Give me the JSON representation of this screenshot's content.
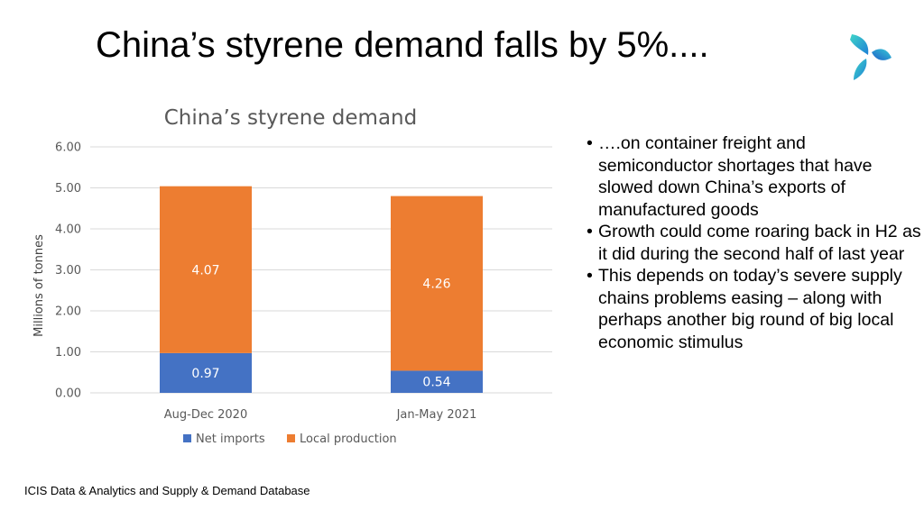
{
  "slide": {
    "title": "China’s styrene demand falls by 5%....",
    "source": "ICIS Data & Analytics and Supply & Demand Database",
    "bullets": [
      "….on container freight and semiconductor shortages that have slowed down China’s exports of manufactured goods",
      "Growth could come roaring back in H2 as it did during the second half of last year",
      "This depends on today’s severe supply chains problems easing – along with perhaps another big round of big local economic stimulus"
    ],
    "bullet_glyph": "•",
    "logo_icon": "triskelion-logo-icon"
  },
  "chart_data": {
    "type": "bar",
    "stacked": true,
    "title": "China’s styrene demand",
    "xlabel": "",
    "ylabel": "Millions of tonnes",
    "categories": [
      "Aug-Dec 2020",
      "Jan-May 2021"
    ],
    "series": [
      {
        "name": "Net imports",
        "values": [
          0.97,
          0.54
        ],
        "labels": [
          "0.97",
          "0.54"
        ],
        "color": "#4472C4"
      },
      {
        "name": "Local production",
        "values": [
          4.07,
          4.26
        ],
        "labels": [
          "4.07",
          "4.26"
        ],
        "color": "#ED7D31"
      }
    ],
    "ylim": [
      0,
      6
    ],
    "yticks": [
      "0.00",
      "1.00",
      "2.00",
      "3.00",
      "4.00",
      "5.00",
      "6.00"
    ],
    "grid": true,
    "legend_position": "bottom"
  }
}
